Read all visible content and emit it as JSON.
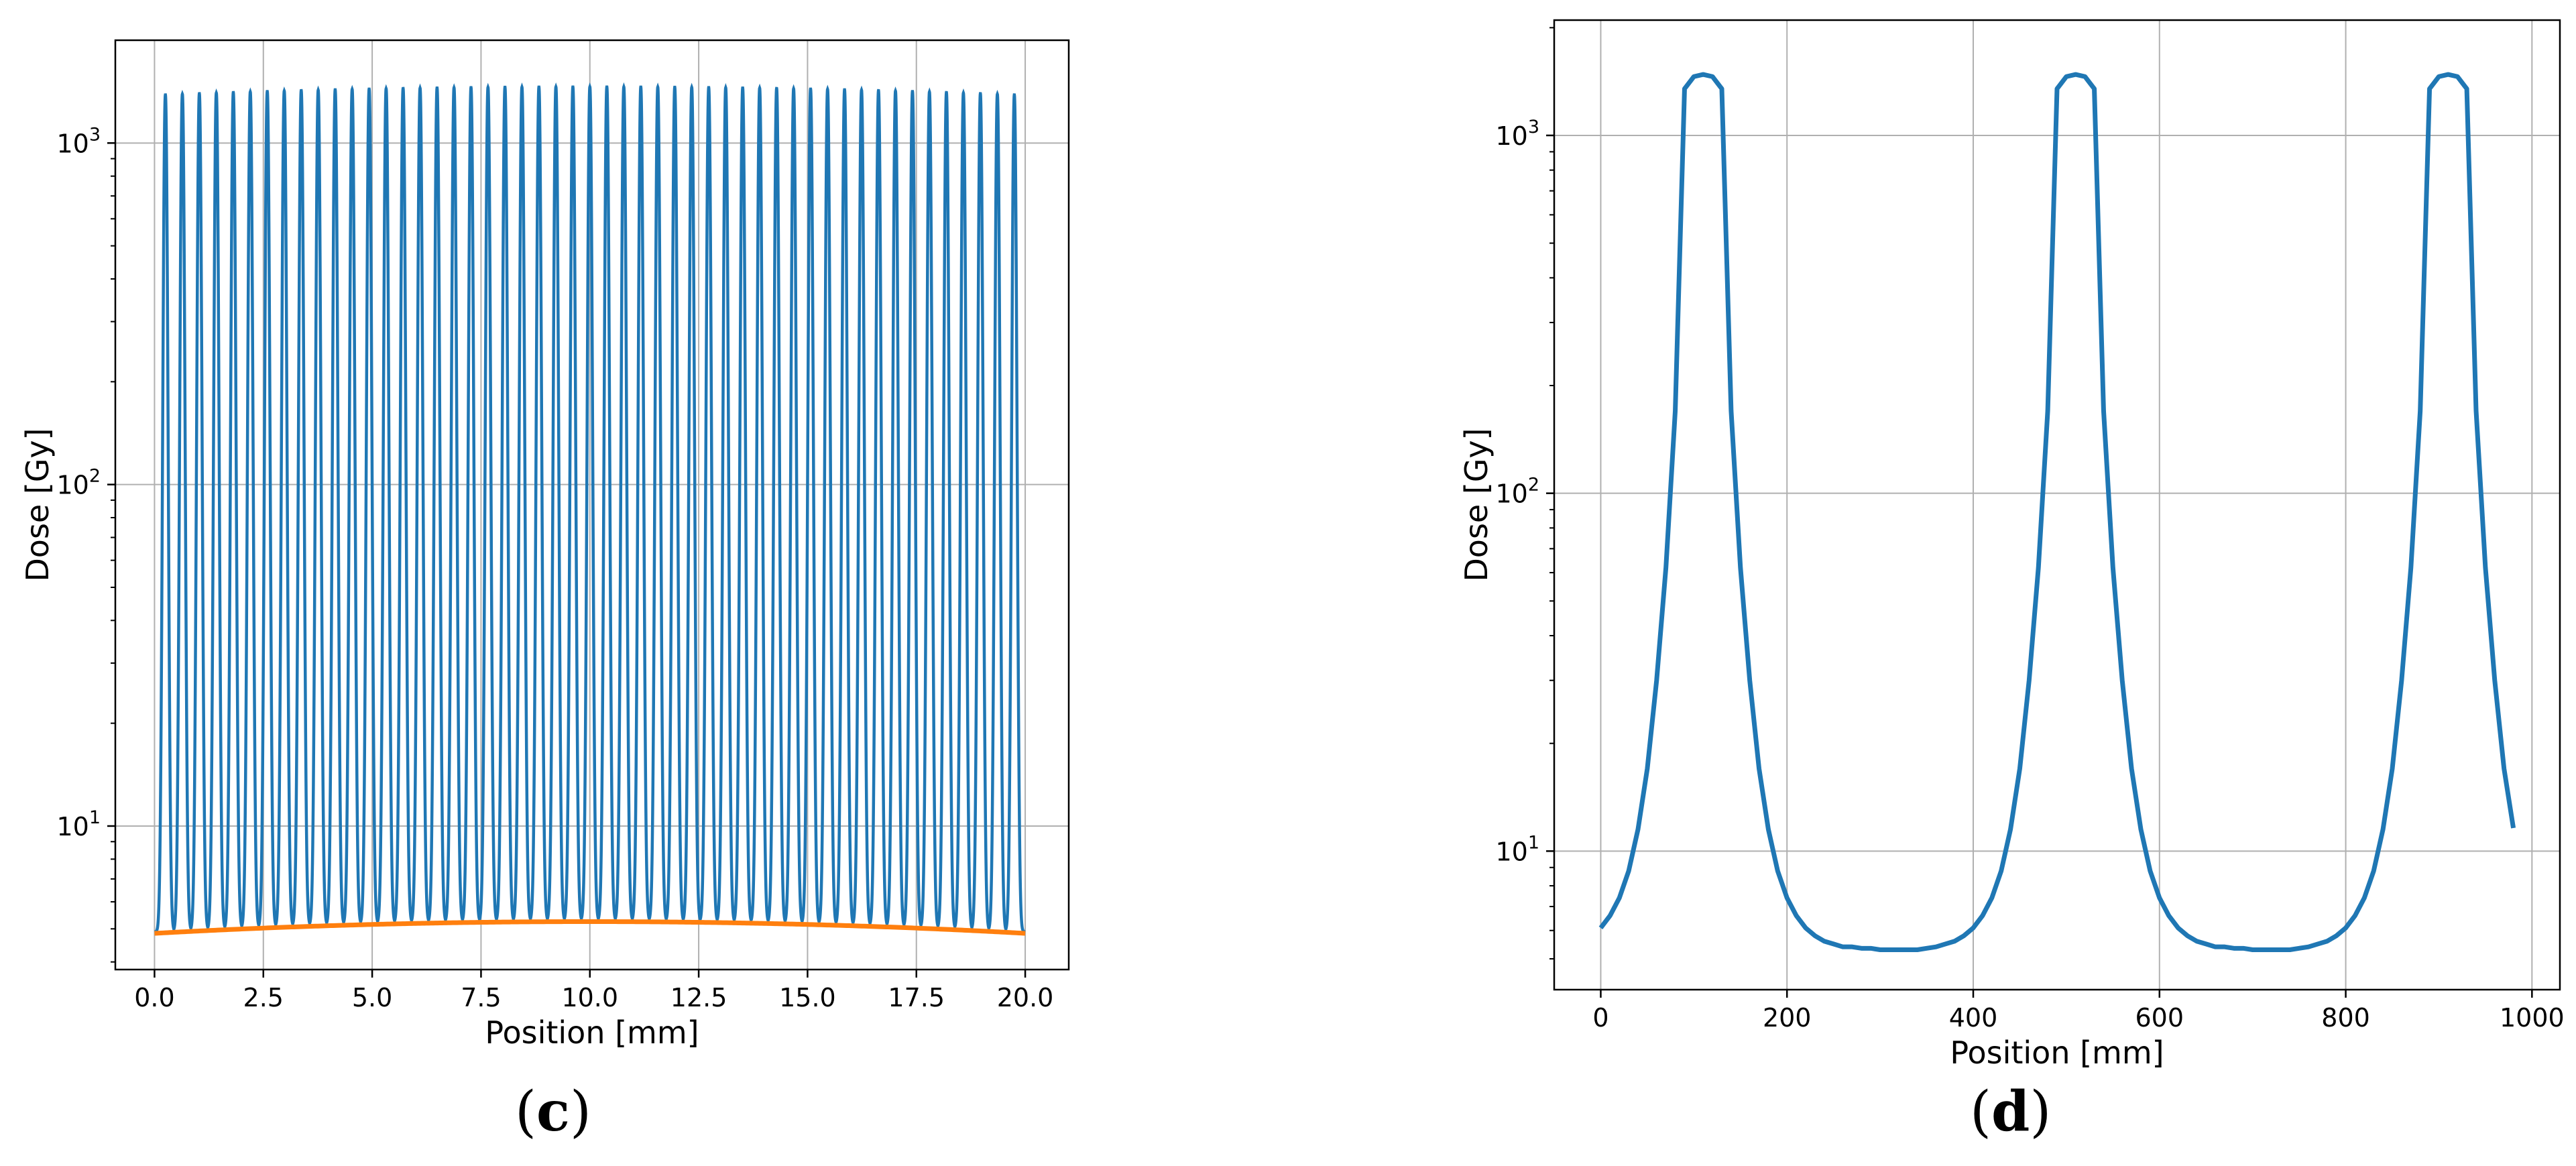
{
  "colors": {
    "series_blue": "#1f77b4",
    "series_orange": "#ff7f0e",
    "grid": "#b0b0b0",
    "axes": "#000000"
  },
  "panels": {
    "c": {
      "label_open": "(",
      "label_letter": "c",
      "label_close": ")"
    },
    "d": {
      "label_open": "(",
      "label_letter": "d",
      "label_close": ")"
    }
  },
  "chart_data": [
    {
      "type": "line",
      "panel": "c",
      "xlabel": "Position [mm]",
      "ylabel": "Dose [Gy]",
      "xlim": [
        -0.9,
        21.0
      ],
      "ylim": [
        3.8,
        2000
      ],
      "yscale": "log",
      "grid": true,
      "x_ticks": [
        0.0,
        2.5,
        5.0,
        7.5,
        10.0,
        12.5,
        15.0,
        17.5,
        20.0
      ],
      "x_tick_labels": [
        "0.0",
        "2.5",
        "5.0",
        "7.5",
        "10.0",
        "12.5",
        "15.0",
        "17.5",
        "20.0"
      ],
      "y_ticks": [
        10,
        100,
        1000
      ],
      "y_tick_bases": [
        "10",
        "10",
        "10"
      ],
      "y_tick_exps": [
        "1",
        "2",
        "3"
      ],
      "series": [
        {
          "color": "#1f77b4",
          "description_values": {
            "peak_count": 51,
            "first_peak_x": 0.25,
            "peak_spacing": 0.39,
            "peak_dose_edge": 1380,
            "peak_dose_center": 1460,
            "valley_dose_edge": 4.9,
            "valley_dose_center": 5.3,
            "x_start": 0.0,
            "x_end": 20.0
          }
        },
        {
          "color": "#ff7f0e",
          "description_values": {
            "x_start": 0.0,
            "x_end": 20.0,
            "dose_edge": 4.85,
            "dose_center": 5.25
          }
        }
      ]
    },
    {
      "type": "line",
      "panel": "d",
      "xlabel": "Position [mm]",
      "ylabel": "Dose [Gy]",
      "xlim": [
        -50,
        1030
      ],
      "ylim": [
        4.1,
        2100
      ],
      "yscale": "log",
      "grid": true,
      "x_ticks": [
        0,
        200,
        400,
        600,
        800,
        1000
      ],
      "x_tick_labels": [
        "0",
        "200",
        "400",
        "600",
        "800",
        "1000"
      ],
      "y_ticks": [
        10,
        100,
        1000
      ],
      "y_tick_bases": [
        "10",
        "10",
        "10"
      ],
      "y_tick_exps": [
        "1",
        "2",
        "3"
      ],
      "series": [
        {
          "color": "#1f77b4",
          "x": [
            0,
            10,
            20,
            30,
            40,
            50,
            60,
            70,
            80,
            90,
            100,
            110,
            120,
            130,
            140,
            150,
            160,
            170,
            180,
            190,
            200,
            210,
            220,
            230,
            240,
            250,
            260,
            270,
            280,
            290,
            300,
            310,
            320,
            330,
            340,
            350,
            360,
            370,
            380,
            390,
            400,
            410,
            420,
            430,
            440,
            450,
            460,
            470,
            480,
            490,
            500,
            510,
            520,
            530,
            540,
            550,
            560,
            570,
            580,
            590,
            600,
            610,
            620,
            630,
            640,
            650,
            660,
            670,
            680,
            690,
            700,
            710,
            720,
            730,
            740,
            750,
            760,
            770,
            780,
            790,
            800,
            810,
            820,
            830,
            840,
            850,
            860,
            870,
            880,
            890,
            900,
            910,
            920,
            930,
            940,
            950,
            960,
            970,
            980
          ],
          "y": [
            6.1,
            6.6,
            7.4,
            8.8,
            11.5,
            17,
            30,
            62,
            170,
            1350,
            1460,
            1480,
            1460,
            1350,
            170,
            62,
            30,
            17,
            11.5,
            8.8,
            7.4,
            6.6,
            6.1,
            5.8,
            5.6,
            5.5,
            5.4,
            5.4,
            5.35,
            5.35,
            5.3,
            5.3,
            5.3,
            5.3,
            5.3,
            5.35,
            5.4,
            5.5,
            5.6,
            5.8,
            6.1,
            6.6,
            7.4,
            8.8,
            11.5,
            17,
            30,
            62,
            170,
            1350,
            1460,
            1480,
            1460,
            1350,
            170,
            62,
            30,
            17,
            11.5,
            8.8,
            7.4,
            6.6,
            6.1,
            5.8,
            5.6,
            5.5,
            5.4,
            5.4,
            5.35,
            5.35,
            5.3,
            5.3,
            5.3,
            5.3,
            5.3,
            5.35,
            5.4,
            5.5,
            5.6,
            5.8,
            6.1,
            6.6,
            7.4,
            8.8,
            11.5,
            17,
            30,
            62,
            170,
            1350,
            1460,
            1480,
            1460,
            1350,
            170,
            62,
            30,
            17,
            11.6
          ]
        }
      ]
    }
  ]
}
